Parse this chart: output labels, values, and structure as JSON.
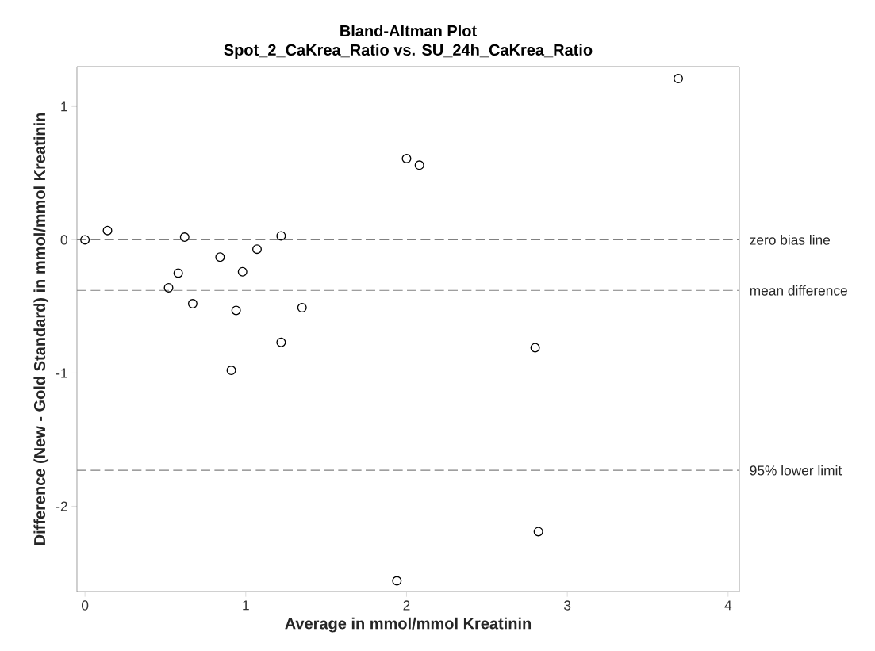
{
  "chart_data": {
    "type": "scatter",
    "title": "Bland-Altman Plot",
    "subtitle": "Spot_2_CaKrea_Ratio vs. SU_24h_CaKrea_Ratio",
    "xlabel": "Average in mmol/mmol Kreatinin",
    "ylabel": "Difference (New - Gold Standard) in mmol/mmol Kreatinin",
    "x": [
      0,
      0.14,
      0.62,
      0.52,
      0.58,
      0.67,
      0.84,
      0.98,
      1.07,
      0.94,
      0.91,
      1.22,
      1.22,
      1.35,
      2.0,
      2.08,
      3.69,
      2.8,
      2.82,
      1.94
    ],
    "values": [
      0,
      0.07,
      0.02,
      -0.36,
      -0.25,
      -0.48,
      -0.13,
      -0.24,
      -0.07,
      -0.53,
      -0.98,
      0.03,
      -0.77,
      -0.51,
      0.61,
      0.56,
      1.21,
      -0.81,
      -2.19,
      -2.56
    ],
    "color": "#000000",
    "marker": "circle",
    "xlim": [
      -0.05,
      4.07
    ],
    "ylim": [
      -2.64,
      1.3
    ],
    "xticks": [
      0,
      1,
      2,
      3,
      4
    ],
    "yticks": [
      -2,
      -1,
      0,
      1
    ],
    "ref_lines": [
      {
        "axis": "y",
        "value": 0,
        "label": "zero bias line",
        "color": "#808080",
        "line_style": "dashed"
      },
      {
        "axis": "y",
        "value": -0.38,
        "label": "mean difference",
        "color": "#808080",
        "line_style": "dashed"
      },
      {
        "axis": "y",
        "value": -1.73,
        "label": "95% lower limit",
        "color": "#808080",
        "line_style": "dashed"
      }
    ]
  }
}
